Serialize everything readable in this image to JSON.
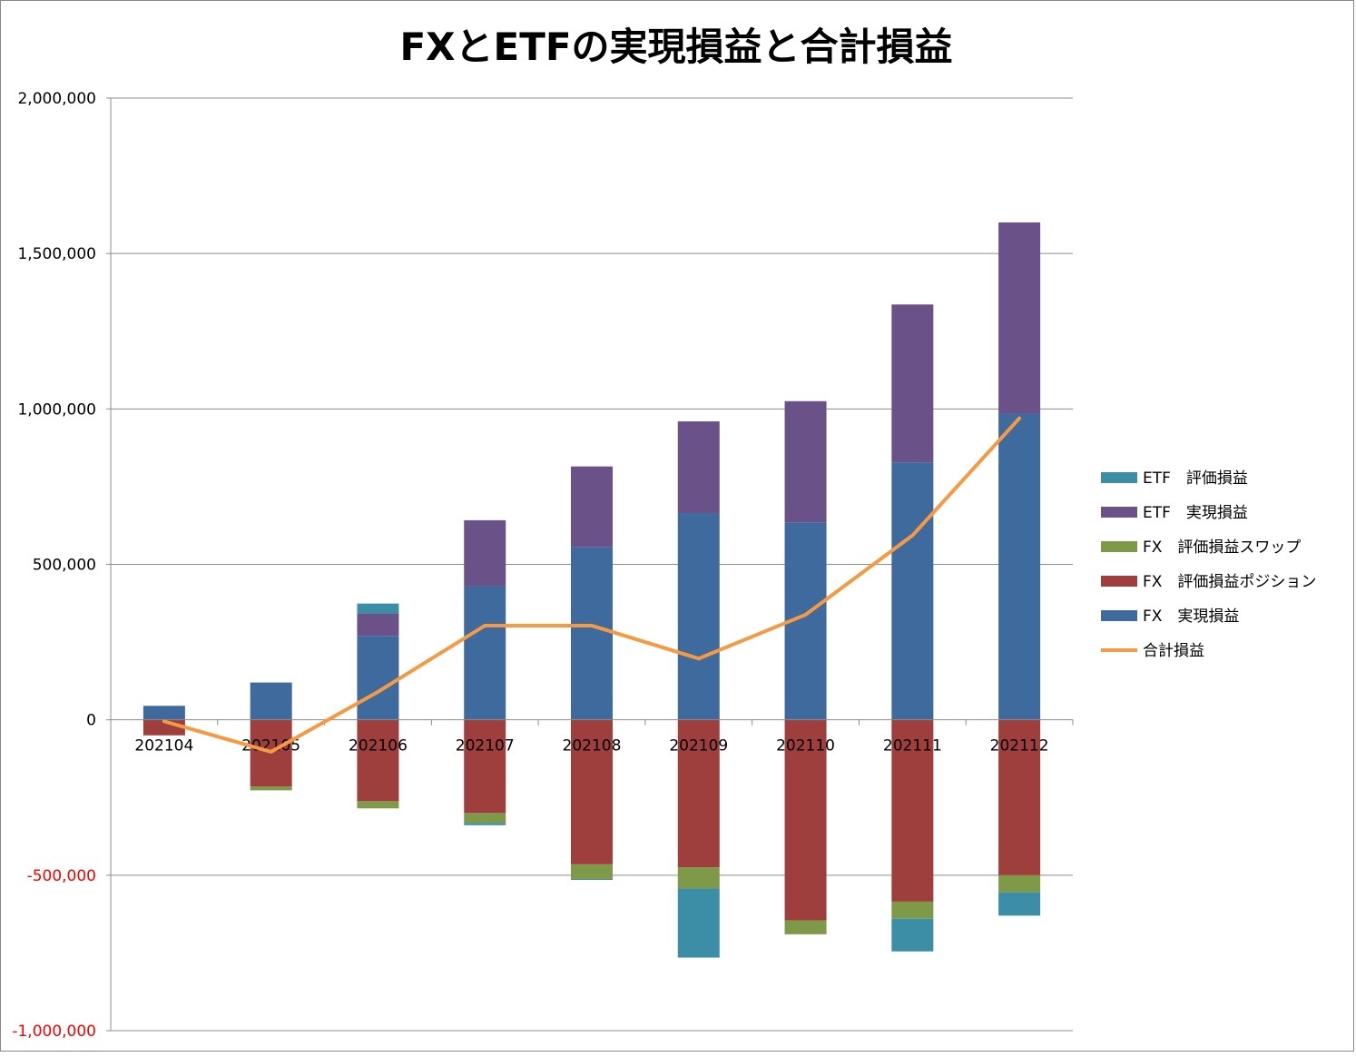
{
  "chart_data": {
    "type": "bar",
    "stacked": true,
    "title": "FXとETFの実現損益と合計損益",
    "categories": [
      "202104",
      "202105",
      "202106",
      "202107",
      "202108",
      "202109",
      "202110",
      "202111",
      "202112"
    ],
    "ylim": [
      -1000000,
      2000000
    ],
    "yticks": [
      2000000,
      1500000,
      1000000,
      500000,
      0,
      -500000,
      -1000000
    ],
    "ytick_labels": [
      "2,000,000",
      "1,500,000",
      "1,000,000",
      "500,000",
      "0",
      "-500,000",
      "-1,000,000"
    ],
    "negative_tick_color": "#ff0000",
    "grid": true,
    "legend_position": "right",
    "series": [
      {
        "name": "FX　実現損益",
        "kind": "bar",
        "color": "#3f6a9e",
        "values": [
          45000,
          120000,
          270000,
          430000,
          555000,
          665000,
          635000,
          828000,
          985000
        ]
      },
      {
        "name": "FX　評価損益ポジション",
        "kind": "bar",
        "color": "#9e3f3e",
        "values": [
          -50000,
          -215000,
          -262000,
          -300000,
          -465000,
          -475000,
          -645000,
          -585000,
          -500000
        ]
      },
      {
        "name": "FX　評価損益スワップ",
        "kind": "bar",
        "color": "#7e9a49",
        "values": [
          0,
          -12000,
          -23000,
          -32000,
          -47000,
          -68000,
          -45000,
          -55000,
          -55000
        ]
      },
      {
        "name": "ETF　実現損益",
        "kind": "bar",
        "color": "#6a5188",
        "values": [
          0,
          0,
          72000,
          212000,
          260000,
          295000,
          390000,
          508000,
          615000
        ]
      },
      {
        "name": "ETF　評価損益",
        "kind": "bar",
        "color": "#3b8ea5",
        "values": [
          0,
          0,
          32000,
          -7000,
          -3000,
          -222000,
          0,
          -105000,
          -75000
        ]
      },
      {
        "name": "合計損益",
        "kind": "line",
        "color": "#f59a42",
        "values": [
          -5000,
          -103000,
          90000,
          303000,
          303000,
          197000,
          338000,
          593000,
          970000
        ]
      }
    ],
    "legend_order": [
      "ETF　評価損益",
      "ETF　実現損益",
      "FX　評価損益スワップ",
      "FX　評価損益ポジション",
      "FX　実現損益",
      "合計損益"
    ]
  }
}
